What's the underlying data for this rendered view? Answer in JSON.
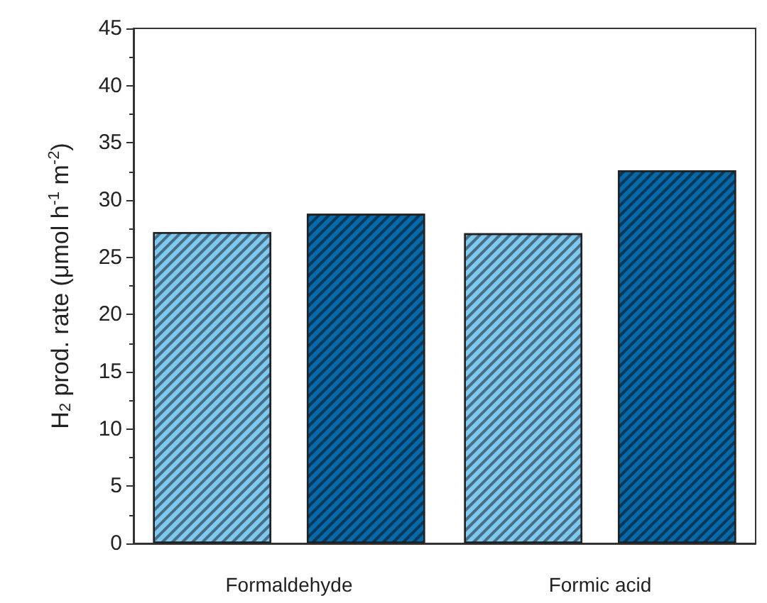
{
  "chart_data": {
    "type": "bar",
    "ylabel": "H$_{2}$ prod. rate (μmol h$^{-1}$ m$^{-2}$)",
    "categories": [
      "Formaldehyde",
      "Formic acid"
    ],
    "series": [
      {
        "color": "#7fc8f0",
        "values": [
          27.2,
          27.1
        ]
      },
      {
        "color": "#0868a8",
        "values": [
          28.8,
          32.6
        ]
      }
    ],
    "ylim": [
      0,
      45
    ],
    "yticks": [
      0,
      5,
      10,
      15,
      20,
      25,
      30,
      35,
      40,
      45
    ],
    "grid": false
  }
}
